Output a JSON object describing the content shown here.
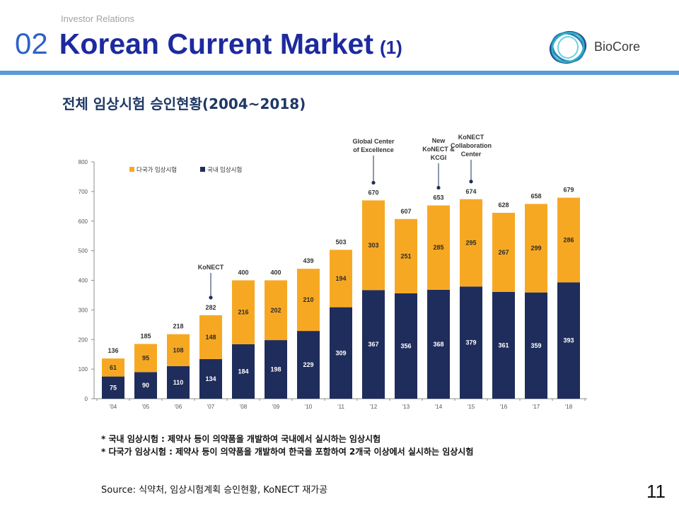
{
  "header": {
    "section_label": "Investor Relations",
    "number": "02",
    "title": "Korean Current Market",
    "part": "(1)"
  },
  "logo": {
    "name": "BioCore",
    "icon": "biocore-rings-logo",
    "colors": [
      "#1f4e8c",
      "#2f7fc1",
      "#2bb3c0",
      "#6fd0da"
    ]
  },
  "theme": {
    "accent": "#5b9bd5"
  },
  "subtitle": "전체 임상시험 승인현황(2004~2018)",
  "chart_data": {
    "type": "bar",
    "stacked": true,
    "title": "",
    "xlabel": "",
    "ylabel": "",
    "categories": [
      "'04",
      "'05",
      "'06",
      "'07",
      "'08",
      "'09",
      "'10",
      "'11",
      "'12",
      "'13",
      "'14",
      "'15",
      "'16",
      "'17",
      "'18"
    ],
    "series": [
      {
        "name": "국내 임상시험",
        "color": "#1f2d5c",
        "values": [
          75,
          90,
          110,
          134,
          184,
          198,
          229,
          309,
          367,
          356,
          368,
          379,
          361,
          359,
          393
        ]
      },
      {
        "name": "다국가 임상시험",
        "color": "#f7a823",
        "values": [
          61,
          95,
          108,
          148,
          216,
          202,
          210,
          194,
          303,
          251,
          285,
          295,
          267,
          299,
          286
        ]
      }
    ],
    "totals": [
      136,
      185,
      218,
      282,
      400,
      400,
      439,
      503,
      670,
      607,
      653,
      674,
      628,
      658,
      679
    ],
    "ylim": [
      0,
      800
    ],
    "yticks": [
      0,
      100,
      200,
      300,
      400,
      500,
      600,
      700,
      800
    ],
    "grid": false,
    "legend": "top-left",
    "annotations": [
      {
        "category_index": 3,
        "lines": [
          "KoNECT"
        ]
      },
      {
        "category_index": 8,
        "lines": [
          "Global Center",
          "of Excellence"
        ]
      },
      {
        "category_index": 10,
        "lines": [
          "New",
          "KoNECT &",
          "KCGI"
        ]
      },
      {
        "category_index": 11,
        "lines": [
          "KoNECT",
          "Collaboration",
          "Center"
        ]
      }
    ]
  },
  "notes": [
    "* 국내 임상시험 : 제약사 등이 의약품을 개발하여 국내에서 실시하는 임상시험",
    "* 다국가 임상시험 : 제약사 등이 의약품을 개발하여 한국을 포함하여 2개국 이상에서 실시하는 임상시험"
  ],
  "source": "Source: 식약처, 임상시험계획 승인현황, KoNECT 재가공",
  "page_number": "11"
}
